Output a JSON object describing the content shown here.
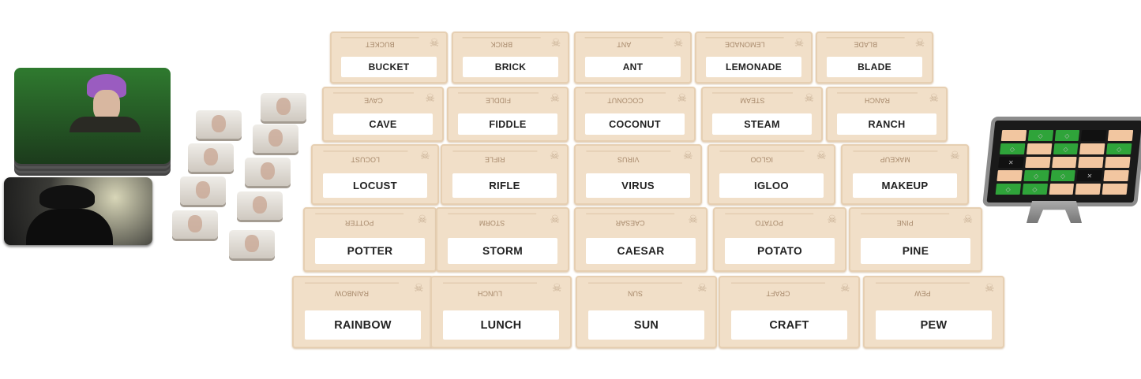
{
  "words": [
    [
      "BUCKET",
      "BRICK",
      "ANT",
      "LEMONADE",
      "BLADE"
    ],
    [
      "CAVE",
      "FIDDLE",
      "COCONUT",
      "STEAM",
      "RANCH"
    ],
    [
      "LOCUST",
      "RIFLE",
      "VIRUS",
      "IGLOO",
      "MAKEUP"
    ],
    [
      "POTTER",
      "STORM",
      "CAESAR",
      "POTATO",
      "PINE"
    ],
    [
      "RAINBOW",
      "LUNCH",
      "SUN",
      "CRAFT",
      "PEW"
    ]
  ],
  "key_card": {
    "grid": [
      [
        "tan",
        "green",
        "green",
        "black",
        "tan"
      ],
      [
        "green",
        "tan",
        "green",
        "tan",
        "green"
      ],
      [
        "assassin",
        "tan",
        "tan",
        "tan",
        "tan"
      ],
      [
        "tan",
        "green",
        "green",
        "assassin",
        "tan"
      ],
      [
        "green",
        "green",
        "tan",
        "tan",
        "tan"
      ]
    ],
    "colors": {
      "green": "#2fa43a",
      "tan": "#f2c6a0",
      "black": "#111111",
      "assassin": "#111111"
    }
  },
  "icons": {
    "card_corner": "skull-icon"
  },
  "agent_tokens": 10
}
